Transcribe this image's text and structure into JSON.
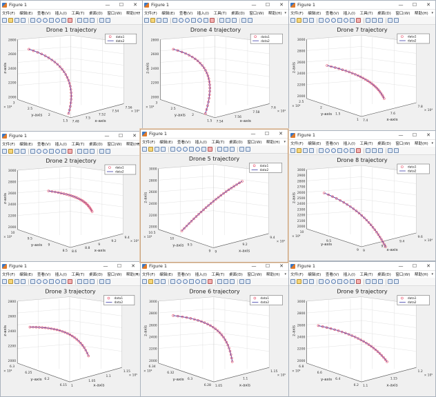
{
  "window_title": "Figure 1",
  "menu_items": [
    "文件(F)",
    "编辑(E)",
    "查看(V)",
    "插入(I)",
    "工具(T)",
    "桌面(D)",
    "窗口(W)",
    "帮助(H)"
  ],
  "window_buttons": {
    "minimize": "—",
    "maximize": "☐",
    "close": "✕"
  },
  "colors": {
    "data1": "#e8506a",
    "data2": "#3a3aa8",
    "grid": "#d9d9d9",
    "axes_bg": "#ffffff"
  },
  "figures": [
    {
      "title": "Drone 1 trajectory",
      "legend": [
        "data1",
        "data2"
      ],
      "x_label": "x-axis",
      "y_label": "y-axis",
      "z_label": "z-axis",
      "x_ticks": [
        "7.48",
        "7.5",
        "7.52",
        "7.54",
        "7.56"
      ],
      "x_exp": "× 10⁴",
      "y_ticks": [
        "1.5",
        "2",
        "2.5",
        "3"
      ],
      "y_exp": "× 10⁴",
      "z_ticks": [
        "2000",
        "2200",
        "2400",
        "2600",
        "2800"
      ]
    },
    {
      "title": "Drone 4 trajectory",
      "legend": [
        "data1",
        "data2"
      ],
      "x_label": "x-axis",
      "y_label": "y-axis",
      "z_label": "z-axis",
      "x_ticks": [
        "7.54",
        "7.56",
        "7.58",
        "7.6"
      ],
      "x_exp": "× 10⁴",
      "y_ticks": [
        "1.5",
        "2",
        "2.5",
        "3"
      ],
      "y_exp": "× 10⁴",
      "z_ticks": [
        "2000",
        "2200",
        "2400",
        "2600",
        "2800"
      ]
    },
    {
      "title": "Drone 7 trajectory",
      "legend": [
        "data1",
        "data2"
      ],
      "x_label": "x-axis",
      "y_label": "y-axis",
      "z_label": "z-axis",
      "x_ticks": [
        "7.4",
        "7.6",
        "7.8"
      ],
      "x_exp": "× 10⁴",
      "y_ticks": [
        "1",
        "1.5",
        "2",
        "2.5"
      ],
      "y_exp": "× 10⁴",
      "z_ticks": [
        "2000",
        "2200",
        "2400",
        "2600",
        "2800",
        "3000"
      ]
    },
    {
      "title": "Drone 2 trajectory",
      "legend": [
        "data1",
        "data2"
      ],
      "x_label": "x-axis",
      "y_label": "y-axis",
      "z_label": "z-axis",
      "x_ticks": [
        "8.6",
        "8.8",
        "9",
        "9.2",
        "9.4"
      ],
      "x_exp": "× 10⁴",
      "y_ticks": [
        "8.5",
        "9",
        "9.5",
        "10"
      ],
      "y_exp": "× 10⁴",
      "z_ticks": [
        "2000",
        "2200",
        "2400",
        "2600",
        "2800",
        "3000"
      ]
    },
    {
      "title": "Drone 5 trajectory",
      "legend": [
        "data1",
        "data2"
      ],
      "x_label": "x-axis",
      "y_label": "y-axis",
      "z_label": "z-axis",
      "x_ticks": [
        "9",
        "9.2",
        "9.4"
      ],
      "x_exp": "× 10⁴",
      "y_ticks": [
        "9",
        "9.5",
        "10",
        "10.5"
      ],
      "y_exp": "× 10⁴",
      "z_ticks": [
        "2000",
        "2200",
        "2400",
        "2600",
        "2800",
        "3000"
      ]
    },
    {
      "title": "Drone 8 trajectory",
      "legend": [
        "data1",
        "data2"
      ],
      "x_label": "x-axis",
      "y_label": "y-axis",
      "z_label": "z-axis",
      "x_ticks": [
        "9",
        "9.2",
        "9.4",
        "9.6"
      ],
      "x_exp": "× 10⁴",
      "y_ticks": [
        "9",
        "9.5",
        "10"
      ],
      "y_exp": "× 10⁴",
      "z_ticks": [
        "2000",
        "2100",
        "2200",
        "2300",
        "2400",
        "2500",
        "2600",
        "2700",
        "2800",
        "2900",
        "3000"
      ]
    },
    {
      "title": "Drone 3 trajectory",
      "legend": [
        "data1",
        "data2"
      ],
      "x_label": "x-axis",
      "y_label": "y-axis",
      "z_label": "z-axis",
      "x_ticks": [
        "1",
        "1.05",
        "1.1",
        "1.15"
      ],
      "x_exp": "× 10⁵",
      "y_ticks": [
        "6.15",
        "6.2",
        "6.25",
        "6.3"
      ],
      "y_exp": "× 10⁴",
      "z_ticks": [
        "2000",
        "2200",
        "2400",
        "2600",
        "2800"
      ]
    },
    {
      "title": "Drone 6 trajectory",
      "legend": [
        "data1",
        "data2"
      ],
      "x_label": "x-axis",
      "y_label": "y-axis",
      "z_label": "z-axis",
      "x_ticks": [
        "1.05",
        "1.1",
        "1.15"
      ],
      "x_exp": "× 10⁵",
      "y_ticks": [
        "6.28",
        "6.3",
        "6.32",
        "6.34"
      ],
      "y_exp": "× 10⁴",
      "z_ticks": [
        "2000",
        "2200",
        "2400",
        "2600",
        "2800",
        "3000"
      ]
    },
    {
      "title": "Drone 9 trajectory",
      "legend": [
        "data1",
        "data2"
      ],
      "x_label": "x-axis",
      "y_label": "y-axis",
      "z_label": "z-axis",
      "x_ticks": [
        "1.1",
        "1.15",
        "1.2"
      ],
      "x_exp": "× 10⁵",
      "y_ticks": [
        "6.2",
        "6.4",
        "6.6",
        "6.8"
      ],
      "y_exp": "× 10⁴",
      "z_ticks": [
        "2000",
        "2200",
        "2400",
        "2600",
        "2800",
        "3000"
      ]
    }
  ]
}
